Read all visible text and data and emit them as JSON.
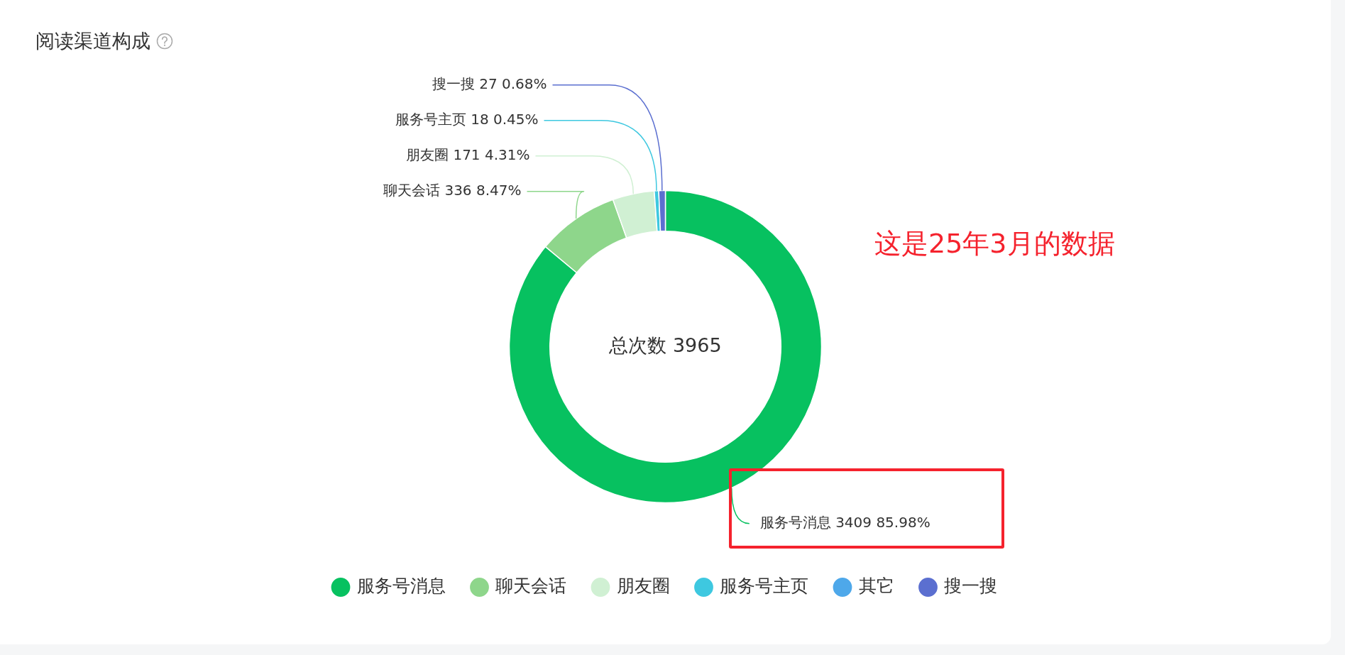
{
  "chart_data": {
    "type": "donut",
    "title": "阅读渠道构成",
    "categories": [
      "服务号消息",
      "聊天会话",
      "朋友圈",
      "服务号主页",
      "其它",
      "搜一搜"
    ],
    "values": [
      3409,
      336,
      171,
      18,
      null,
      27
    ],
    "value_labels": [
      "3409 85.98%",
      "336 8.47%",
      "171 4.31%",
      "18 0.45%",
      null,
      "27 0.68%"
    ],
    "colors": [
      "#07c160",
      "#8ed68b",
      "#d0f0d3",
      "#3ec8e0",
      "#4ea8ea",
      "#5b6fd0"
    ],
    "legend": "bottom",
    "annotations": [
      "总次数 3965",
      "这是25年3月的数据"
    ]
  }
}
